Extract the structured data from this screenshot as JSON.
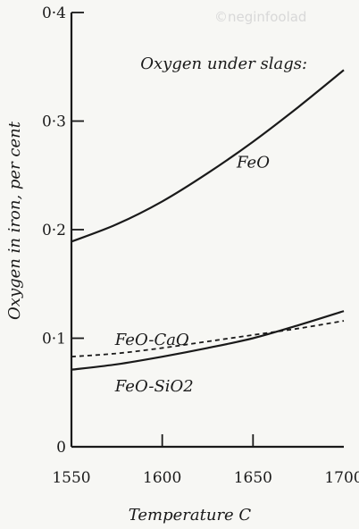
{
  "watermark": "©neginfoolad",
  "chart_data": {
    "type": "line",
    "title": "",
    "xlabel": "Temperature C",
    "ylabel": "Oxygen in iron, per cent",
    "xlim": [
      1550,
      1700
    ],
    "ylim": [
      0,
      0.4
    ],
    "x_ticks": [
      1550,
      1600,
      1650,
      1700
    ],
    "x_tick_labels": [
      "1550",
      "1600",
      "1650",
      "1700"
    ],
    "y_ticks": [
      0,
      0.1,
      0.2,
      0.3,
      0.4
    ],
    "y_tick_labels": [
      "0",
      "0·1",
      "0·2",
      "0·3",
      "0·4"
    ],
    "grid": false,
    "legend": "none",
    "annotations": [
      {
        "text": "Oxygen under slags:",
        "x": 1588,
        "y": 0.348
      },
      {
        "text": "FeO",
        "x": 1641,
        "y": 0.257
      },
      {
        "text": "FeO-CaO",
        "x": 1574,
        "y": 0.094
      },
      {
        "text": "FeO-SiO2",
        "x": 1574,
        "y": 0.051
      }
    ],
    "series": [
      {
        "name": "FeO",
        "style": "solid",
        "x": [
          1550,
          1575,
          1600,
          1625,
          1650,
          1675,
          1700
        ],
        "y": [
          0.189,
          0.205,
          0.226,
          0.252,
          0.281,
          0.313,
          0.347
        ]
      },
      {
        "name": "FeO-CaO",
        "style": "dashed",
        "x": [
          1550,
          1575,
          1600,
          1625,
          1650,
          1675,
          1700
        ],
        "y": [
          0.083,
          0.086,
          0.091,
          0.097,
          0.103,
          0.109,
          0.116
        ]
      },
      {
        "name": "FeO-SiO2",
        "style": "solid",
        "x": [
          1550,
          1575,
          1600,
          1625,
          1650,
          1675,
          1700
        ],
        "y": [
          0.071,
          0.076,
          0.083,
          0.091,
          0.1,
          0.112,
          0.125
        ]
      }
    ]
  }
}
